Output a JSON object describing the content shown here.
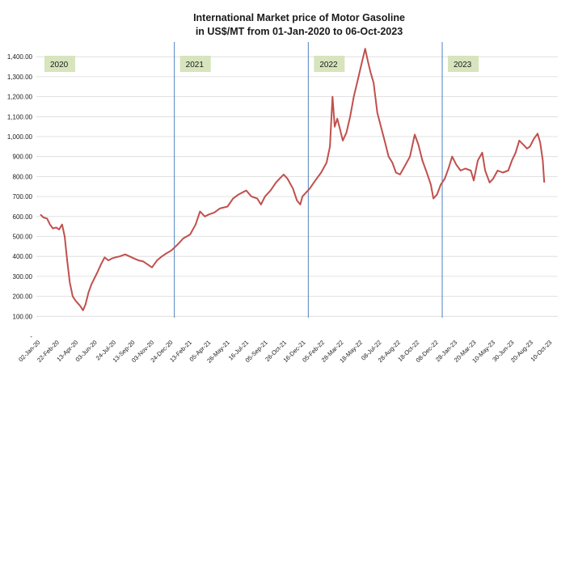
{
  "chart_data": {
    "type": "line",
    "title_lines": [
      "International Market price of Motor Gasoline",
      "in US$/MT from 01-Jan-2020 to 06-Oct-2023"
    ],
    "xlabel": "",
    "ylabel": "",
    "ylim": [
      0,
      1500
    ],
    "y_ticks": [
      {
        "value": 0,
        "label": "-"
      },
      {
        "value": 100,
        "label": "100.00"
      },
      {
        "value": 200,
        "label": "200.00"
      },
      {
        "value": 300,
        "label": "300.00"
      },
      {
        "value": 400,
        "label": "400.00"
      },
      {
        "value": 500,
        "label": "500.00"
      },
      {
        "value": 600,
        "label": "600.00"
      },
      {
        "value": 700,
        "label": "700.00"
      },
      {
        "value": 800,
        "label": "800.00"
      },
      {
        "value": 900,
        "label": "900.00"
      },
      {
        "value": 1000,
        "label": "1,000.00"
      },
      {
        "value": 1100,
        "label": "1,100.00"
      },
      {
        "value": 1200,
        "label": "1,200.00"
      },
      {
        "value": 1300,
        "label": "1,300.00"
      },
      {
        "value": 1400,
        "label": "1,400.00"
      }
    ],
    "x_tick_labels": [
      "02-Jan-20",
      "22-Feb-20",
      "13-Apr-20",
      "03-Jun-20",
      "24-Jul-20",
      "13-Sep-20",
      "03-Nov-20",
      "24-Dec-20",
      "13-Feb-21",
      "05-Apr-21",
      "26-May-21",
      "16-Jul-21",
      "05-Sep-21",
      "26-Oct-21",
      "16-Dec-21",
      "05-Feb-22",
      "28-Mar-22",
      "18-May-22",
      "08-Jul-22",
      "28-Aug-22",
      "18-Oct-22",
      "08-Dec-22",
      "28-Jan-23",
      "20-Mar-23",
      "10-May-23",
      "30-Jun-23",
      "20-Aug-23",
      "10-Oct-23"
    ],
    "grid": true,
    "line_color": "#c0504d",
    "divider_color": "#4f81bd",
    "year_label_bg": "#d7e4bd",
    "year_markers": [
      {
        "label": "2020",
        "date": "2020-01-01"
      },
      {
        "label": "2021",
        "date": "2021-01-01"
      },
      {
        "label": "2022",
        "date": "2022-01-01"
      },
      {
        "label": "2023",
        "date": "2023-01-01"
      }
    ],
    "series": [
      {
        "name": "",
        "points": [
          [
            "2020-01-02",
            610
          ],
          [
            "2020-01-10",
            595
          ],
          [
            "2020-01-20",
            590
          ],
          [
            "2020-01-28",
            560
          ],
          [
            "2020-02-05",
            540
          ],
          [
            "2020-02-14",
            545
          ],
          [
            "2020-02-22",
            535
          ],
          [
            "2020-03-01",
            560
          ],
          [
            "2020-03-08",
            500
          ],
          [
            "2020-03-15",
            380
          ],
          [
            "2020-03-22",
            270
          ],
          [
            "2020-03-30",
            200
          ],
          [
            "2020-04-06",
            180
          ],
          [
            "2020-04-13",
            165
          ],
          [
            "2020-04-20",
            150
          ],
          [
            "2020-04-27",
            130
          ],
          [
            "2020-05-04",
            160
          ],
          [
            "2020-05-12",
            220
          ],
          [
            "2020-05-20",
            260
          ],
          [
            "2020-05-28",
            290
          ],
          [
            "2020-06-05",
            320
          ],
          [
            "2020-06-15",
            360
          ],
          [
            "2020-06-25",
            395
          ],
          [
            "2020-07-05",
            380
          ],
          [
            "2020-07-15",
            390
          ],
          [
            "2020-07-24",
            395
          ],
          [
            "2020-08-05",
            400
          ],
          [
            "2020-08-20",
            410
          ],
          [
            "2020-09-01",
            400
          ],
          [
            "2020-09-13",
            390
          ],
          [
            "2020-09-25",
            380
          ],
          [
            "2020-10-08",
            375
          ],
          [
            "2020-10-20",
            360
          ],
          [
            "2020-11-01",
            345
          ],
          [
            "2020-11-15",
            380
          ],
          [
            "2020-11-28",
            400
          ],
          [
            "2020-12-10",
            415
          ],
          [
            "2020-12-24",
            430
          ],
          [
            "2021-01-10",
            460
          ],
          [
            "2021-01-25",
            490
          ],
          [
            "2021-02-13",
            510
          ],
          [
            "2021-02-28",
            560
          ],
          [
            "2021-03-12",
            625
          ],
          [
            "2021-03-25",
            600
          ],
          [
            "2021-04-05",
            610
          ],
          [
            "2021-04-20",
            620
          ],
          [
            "2021-05-05",
            640
          ],
          [
            "2021-05-26",
            650
          ],
          [
            "2021-06-10",
            690
          ],
          [
            "2021-06-25",
            710
          ],
          [
            "2021-07-05",
            720
          ],
          [
            "2021-07-16",
            730
          ],
          [
            "2021-07-30",
            700
          ],
          [
            "2021-08-15",
            690
          ],
          [
            "2021-08-25",
            660
          ],
          [
            "2021-09-05",
            700
          ],
          [
            "2021-09-20",
            730
          ],
          [
            "2021-10-05",
            770
          ],
          [
            "2021-10-15",
            790
          ],
          [
            "2021-10-26",
            810
          ],
          [
            "2021-11-05",
            790
          ],
          [
            "2021-11-20",
            740
          ],
          [
            "2021-12-01",
            680
          ],
          [
            "2021-12-10",
            660
          ],
          [
            "2021-12-16",
            700
          ],
          [
            "2022-01-05",
            740
          ],
          [
            "2022-01-20",
            780
          ],
          [
            "2022-02-05",
            820
          ],
          [
            "2022-02-20",
            870
          ],
          [
            "2022-03-01",
            950
          ],
          [
            "2022-03-08",
            1200
          ],
          [
            "2022-03-14",
            1050
          ],
          [
            "2022-03-21",
            1090
          ],
          [
            "2022-03-28",
            1040
          ],
          [
            "2022-04-05",
            980
          ],
          [
            "2022-04-15",
            1020
          ],
          [
            "2022-04-25",
            1100
          ],
          [
            "2022-05-05",
            1200
          ],
          [
            "2022-05-18",
            1300
          ],
          [
            "2022-05-28",
            1380
          ],
          [
            "2022-06-05",
            1440
          ],
          [
            "2022-06-12",
            1380
          ],
          [
            "2022-06-20",
            1320
          ],
          [
            "2022-06-28",
            1270
          ],
          [
            "2022-07-08",
            1120
          ],
          [
            "2022-07-18",
            1050
          ],
          [
            "2022-07-28",
            980
          ],
          [
            "2022-08-08",
            900
          ],
          [
            "2022-08-18",
            870
          ],
          [
            "2022-08-28",
            820
          ],
          [
            "2022-09-08",
            810
          ],
          [
            "2022-09-20",
            850
          ],
          [
            "2022-10-05",
            900
          ],
          [
            "2022-10-18",
            1010
          ],
          [
            "2022-10-28",
            960
          ],
          [
            "2022-11-08",
            880
          ],
          [
            "2022-11-20",
            820
          ],
          [
            "2022-12-01",
            760
          ],
          [
            "2022-12-08",
            690
          ],
          [
            "2022-12-18",
            710
          ],
          [
            "2022-12-28",
            760
          ],
          [
            "2023-01-08",
            790
          ],
          [
            "2023-01-18",
            840
          ],
          [
            "2023-01-28",
            900
          ],
          [
            "2023-02-08",
            860
          ],
          [
            "2023-02-20",
            830
          ],
          [
            "2023-03-05",
            840
          ],
          [
            "2023-03-20",
            830
          ],
          [
            "2023-03-28",
            780
          ],
          [
            "2023-04-08",
            880
          ],
          [
            "2023-04-20",
            920
          ],
          [
            "2023-04-28",
            830
          ],
          [
            "2023-05-10",
            770
          ],
          [
            "2023-05-20",
            790
          ],
          [
            "2023-06-01",
            830
          ],
          [
            "2023-06-15",
            820
          ],
          [
            "2023-06-30",
            830
          ],
          [
            "2023-07-10",
            880
          ],
          [
            "2023-07-20",
            920
          ],
          [
            "2023-07-30",
            980
          ],
          [
            "2023-08-10",
            960
          ],
          [
            "2023-08-20",
            940
          ],
          [
            "2023-08-28",
            950
          ],
          [
            "2023-09-08",
            990
          ],
          [
            "2023-09-18",
            1015
          ],
          [
            "2023-09-25",
            970
          ],
          [
            "2023-10-02",
            880
          ],
          [
            "2023-10-06",
            770
          ]
        ]
      }
    ]
  }
}
